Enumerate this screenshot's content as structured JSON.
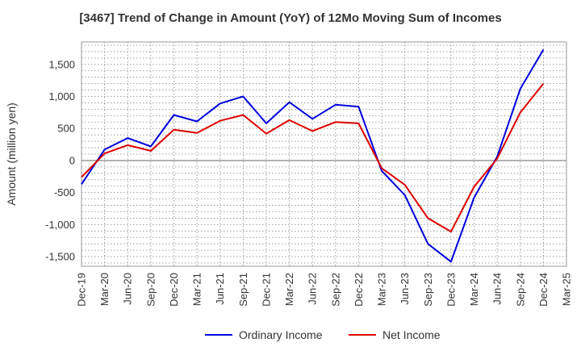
{
  "chart_data": {
    "type": "line",
    "title": "[3467]  Trend of Change in Amount (YoY) of 12Mo Moving Sum of Incomes",
    "xlabel": "",
    "ylabel": "Amount (million yen)",
    "ylim": [
      -1650,
      1850
    ],
    "yticks": [
      -1500,
      -1000,
      -500,
      0,
      500,
      1000,
      1500
    ],
    "ytick_labels": [
      "-1,500",
      "-1,000",
      "-500",
      "0",
      "500",
      "1,000",
      "1,500"
    ],
    "categories": [
      "Dec-19",
      "Mar-20",
      "Jun-20",
      "Sep-20",
      "Dec-20",
      "Mar-21",
      "Jun-21",
      "Sep-21",
      "Dec-21",
      "Mar-22",
      "Jun-22",
      "Sep-22",
      "Dec-22",
      "Mar-23",
      "Jun-23",
      "Sep-23",
      "Dec-23",
      "Mar-24",
      "Jun-24",
      "Sep-24",
      "Dec-24",
      "Mar-25"
    ],
    "grid": true,
    "legend_position": "bottom",
    "series": [
      {
        "name": "Ordinary Income",
        "color": "#0000dd",
        "values": [
          -370,
          170,
          350,
          220,
          710,
          610,
          890,
          1000,
          580,
          910,
          650,
          870,
          840,
          -160,
          -540,
          -1300,
          -1580,
          -580,
          60,
          1120,
          1730,
          null
        ]
      },
      {
        "name": "Net Income",
        "color": "#dd0000",
        "values": [
          -260,
          110,
          240,
          150,
          480,
          430,
          620,
          710,
          420,
          630,
          460,
          600,
          580,
          -120,
          -380,
          -900,
          -1110,
          -410,
          30,
          750,
          1200,
          null
        ]
      }
    ]
  }
}
